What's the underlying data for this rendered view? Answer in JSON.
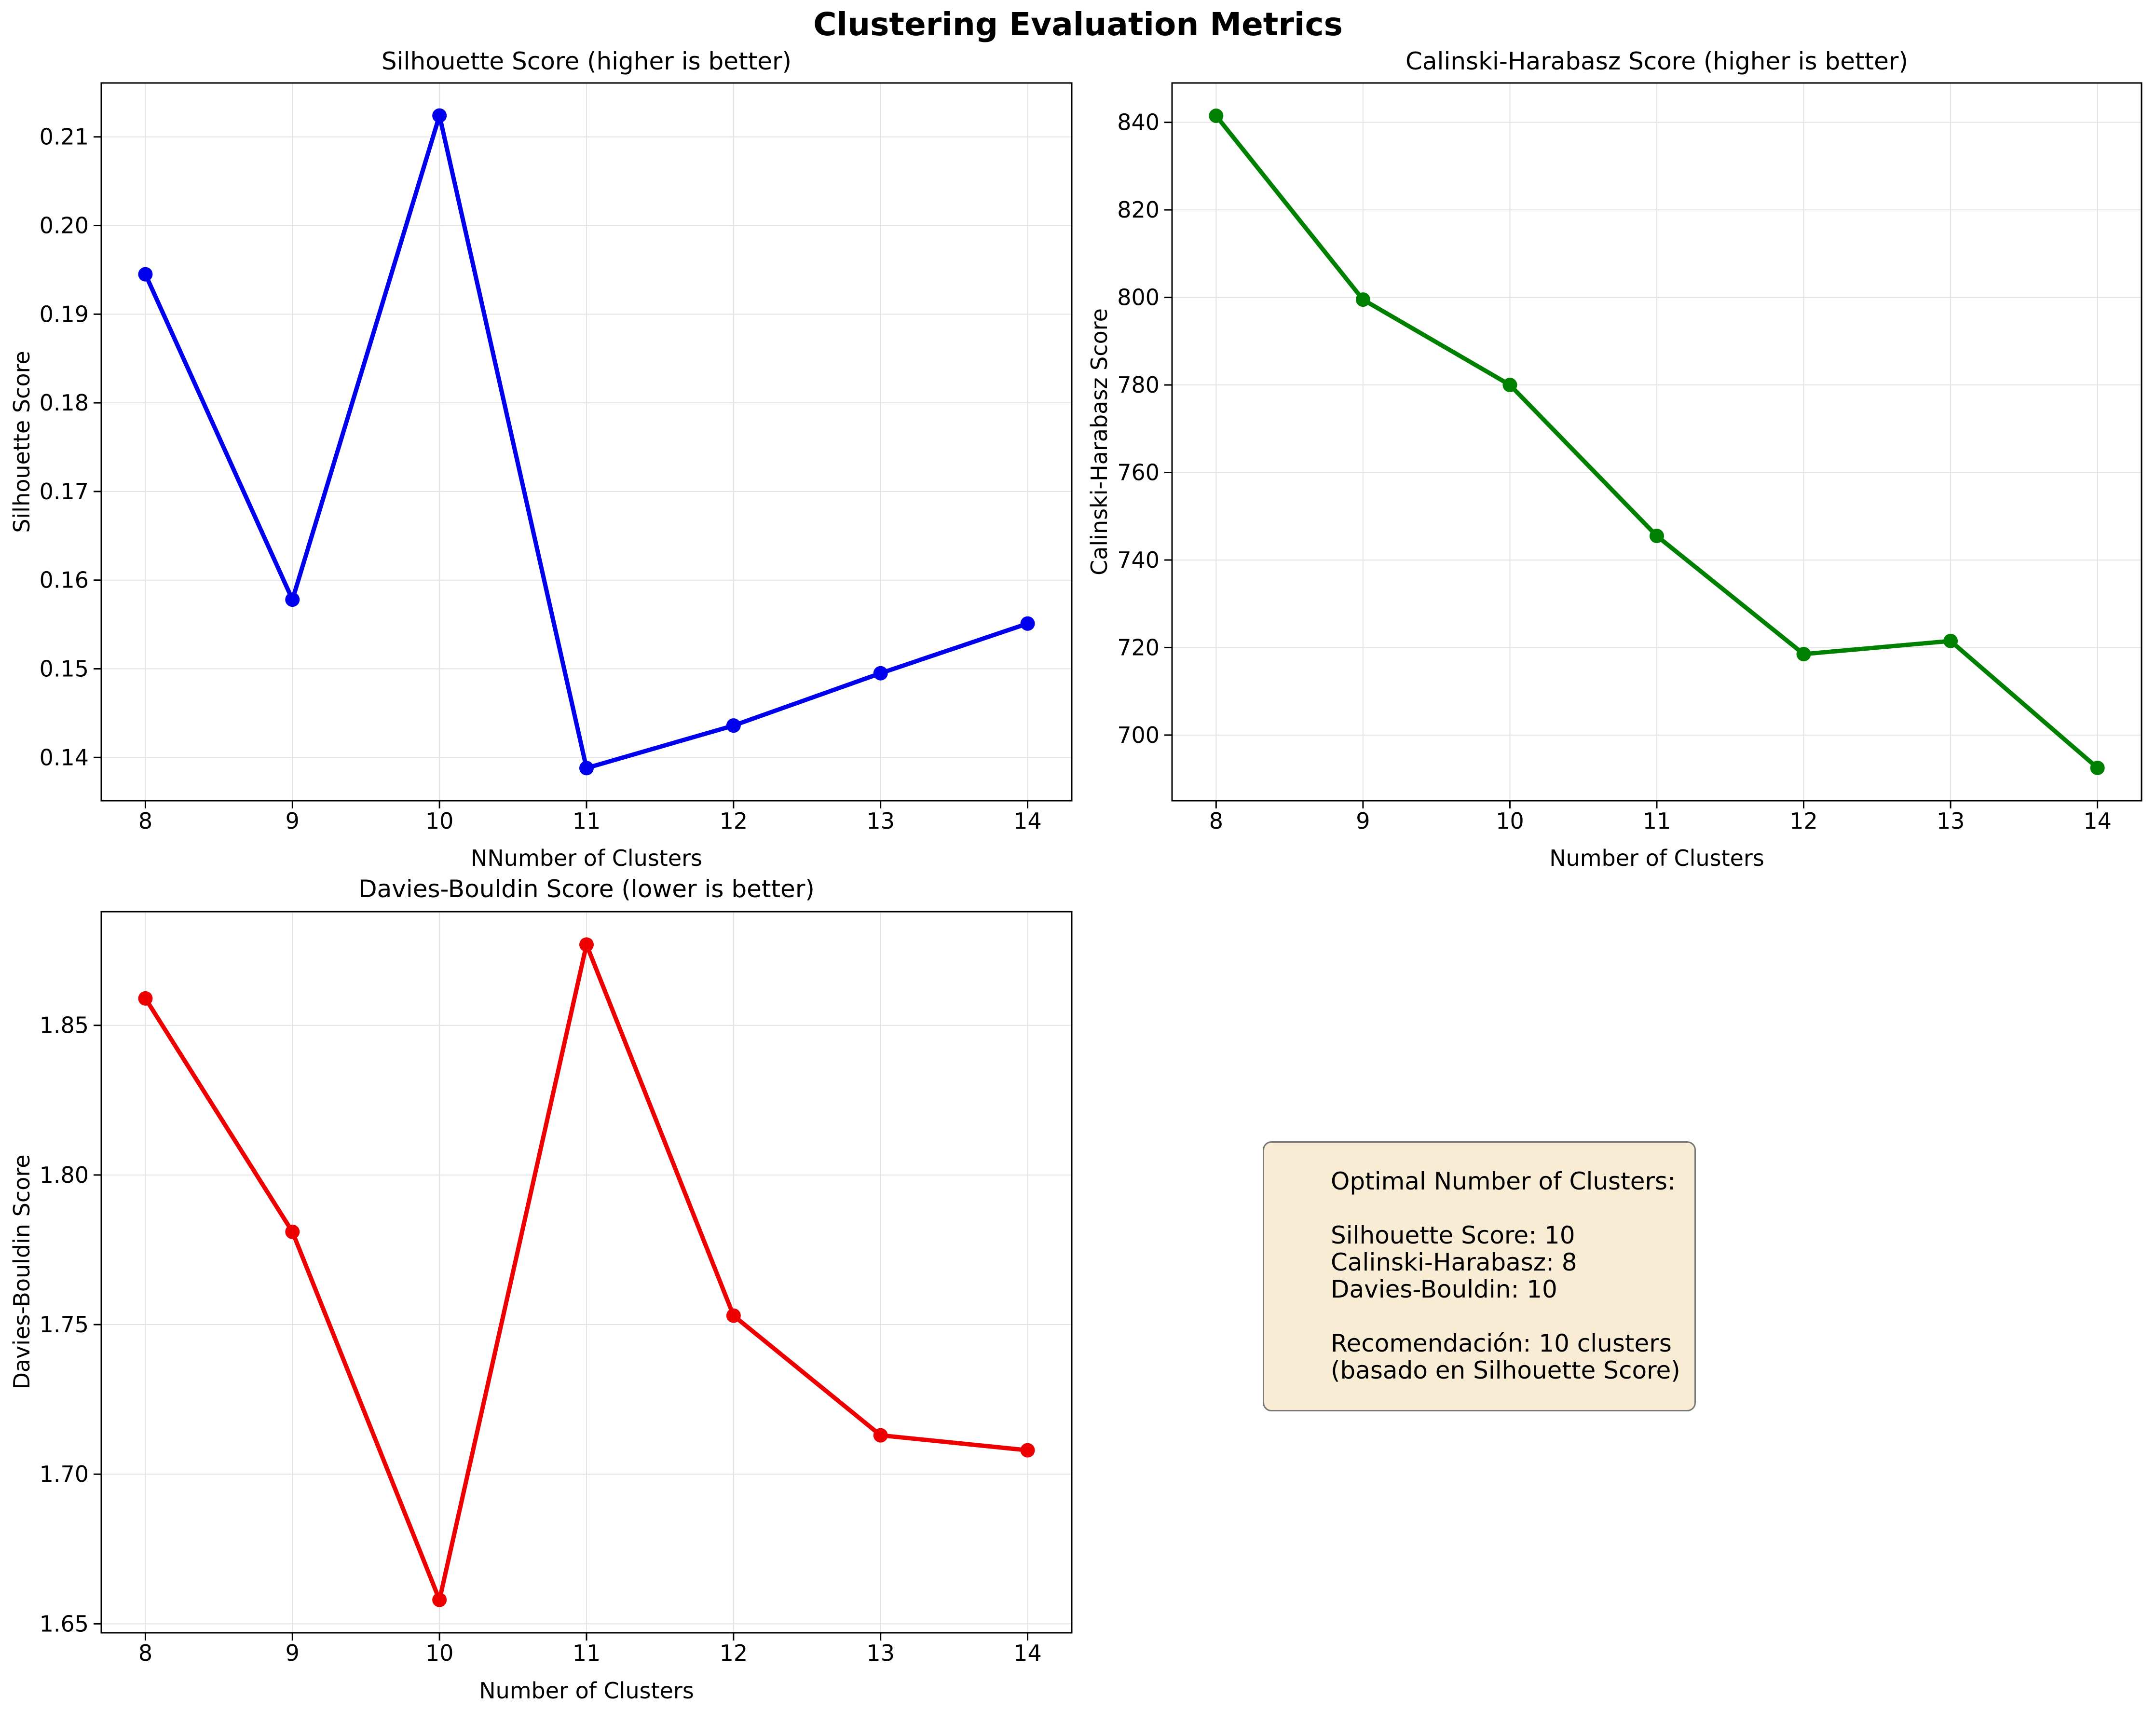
{
  "figure": {
    "suptitle": "Clustering Evaluation Metrics"
  },
  "chart_data": [
    {
      "type": "line",
      "title": "Silhouette Score (higher is better)",
      "xlabel": "NNumber of Clusters",
      "ylabel": "Silhouette Score",
      "x": [
        8,
        9,
        10,
        11,
        12,
        13,
        14
      ],
      "values": [
        0.1945,
        0.1578,
        0.2124,
        0.1388,
        0.1436,
        0.1495,
        0.1551
      ],
      "color": "#0000ee",
      "marker": "o",
      "grid": true,
      "legend": "none",
      "xlim": [
        7.7,
        14.3
      ],
      "ylim": [
        0.13512,
        0.21608
      ],
      "xticks": [
        "8",
        "9",
        "10",
        "11",
        "12",
        "13",
        "14"
      ],
      "yticks": [
        "0.14",
        "0.15",
        "0.16",
        "0.17",
        "0.18",
        "0.19",
        "0.20",
        "0.21"
      ]
    },
    {
      "type": "line",
      "title": "Calinski-Harabasz Score (higher is better)",
      "xlabel": "Number of Clusters",
      "ylabel": "Calinski-Harabasz Score",
      "x": [
        8,
        9,
        10,
        11,
        12,
        13,
        14
      ],
      "values": [
        841.5,
        799.5,
        780.0,
        745.5,
        718.5,
        721.5,
        692.5
      ],
      "color": "#008000",
      "marker": "o",
      "grid": true,
      "legend": "none",
      "xlim": [
        7.7,
        14.3
      ],
      "ylim": [
        685.0,
        849.0
      ],
      "xticks": [
        "8",
        "9",
        "10",
        "11",
        "12",
        "13",
        "14"
      ],
      "yticks": [
        "700",
        "720",
        "740",
        "760",
        "780",
        "800",
        "820",
        "840"
      ]
    },
    {
      "type": "line",
      "title": "Davies-Bouldin Score (lower is better)",
      "xlabel": "Number of Clusters",
      "ylabel": "Davies-Bouldin Score",
      "x": [
        8,
        9,
        10,
        11,
        12,
        13,
        14
      ],
      "values": [
        1.859,
        1.781,
        1.658,
        1.877,
        1.753,
        1.713,
        1.708
      ],
      "color": "#ee0000",
      "marker": "o",
      "grid": true,
      "legend": "none",
      "xlim": [
        7.7,
        14.3
      ],
      "ylim": [
        1.647,
        1.888
      ],
      "xticks": [
        "8",
        "9",
        "10",
        "11",
        "12",
        "13",
        "14"
      ],
      "yticks": [
        "1.65",
        "1.70",
        "1.75",
        "1.80",
        "1.85"
      ]
    }
  ],
  "annotation_box": {
    "background": "#f8ecd4",
    "border_color": "#777777",
    "lines": [
      "Optimal Number of Clusters:",
      "",
      "Silhouette Score: 10",
      "Calinski-Harabasz: 8",
      "Davies-Bouldin: 10",
      "",
      "Recomendación: 10 clusters",
      "(basado en Silhouette Score)"
    ]
  }
}
